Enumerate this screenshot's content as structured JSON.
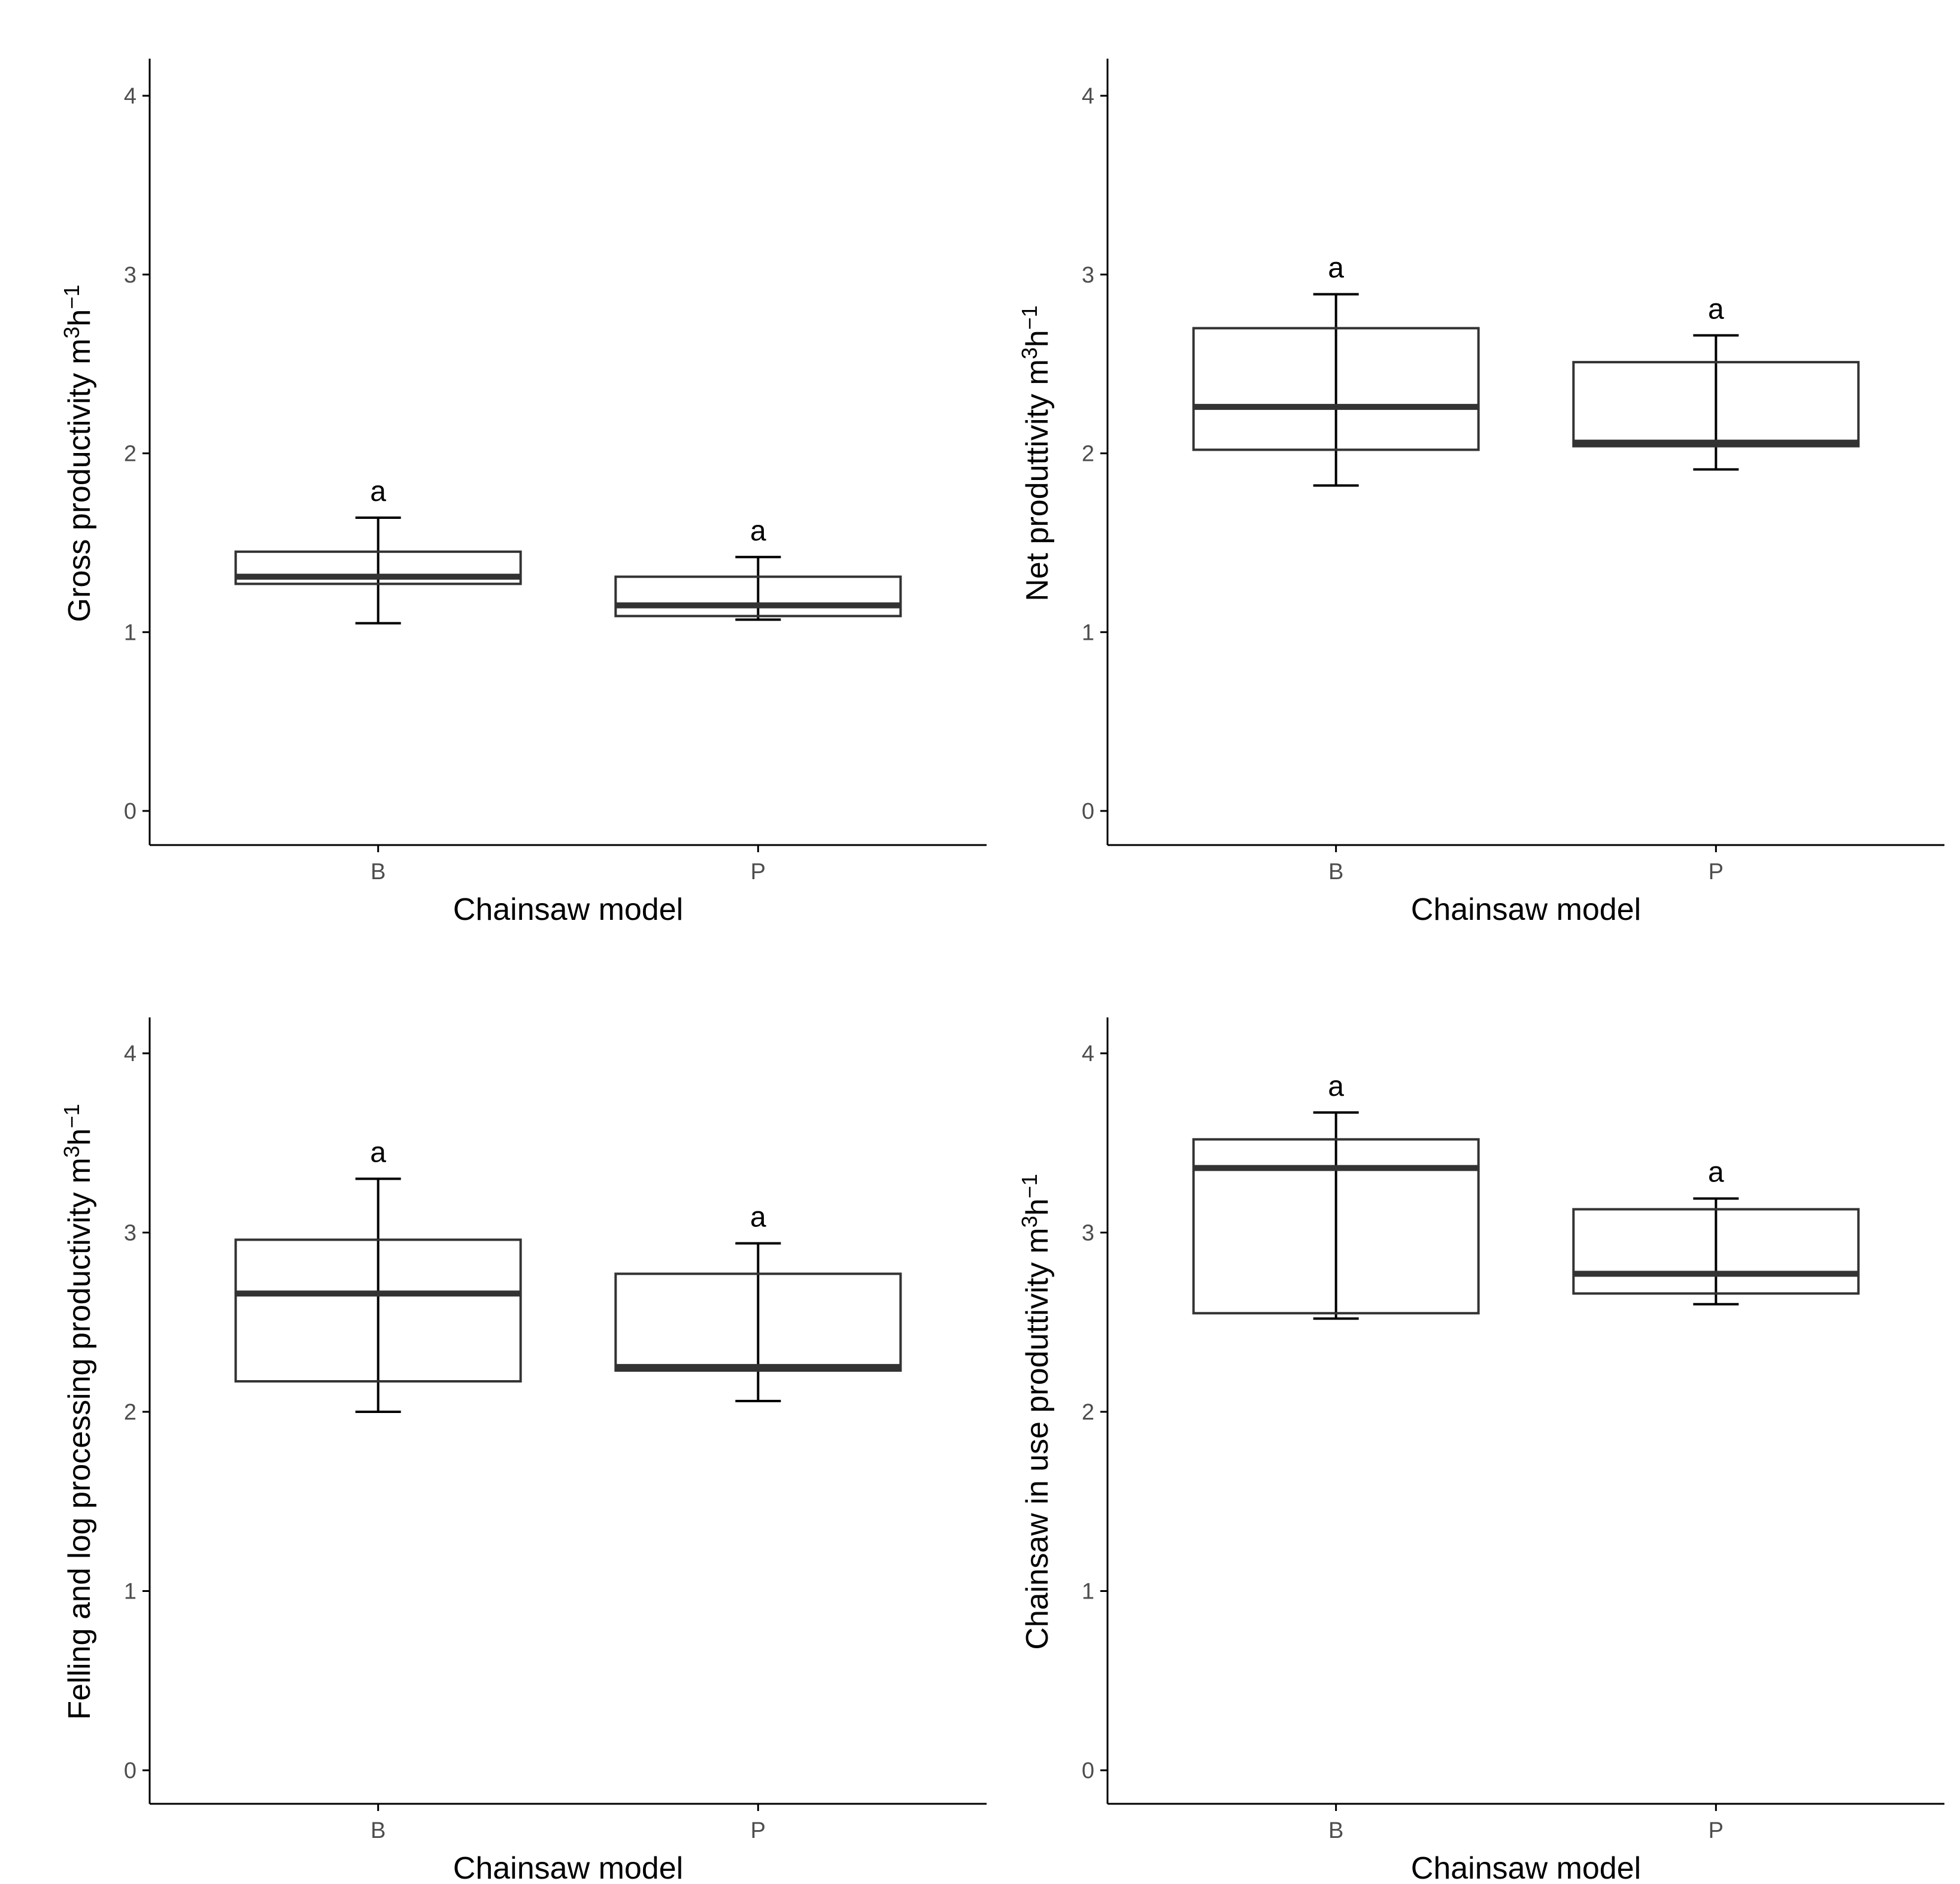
{
  "chart_data": [
    {
      "type": "box",
      "title": "",
      "xlabel": "Chainsaw model",
      "ylabel": "Gross productivity m",
      "ylabel_unit_sup1": "3",
      "ylabel_unit_h": "h",
      "ylabel_unit_sup2": "−1",
      "ylim": [
        -0.2,
        4.2
      ],
      "yticks": [
        "0",
        "1",
        "2",
        "3",
        "4"
      ],
      "categories": [
        "B",
        "P"
      ],
      "boxes": [
        {
          "category": "B",
          "lower_whisker": 1.05,
          "q1": 1.27,
          "median": 1.31,
          "q3": 1.45,
          "upper_whisker": 1.64,
          "letter": "a"
        },
        {
          "category": "P",
          "lower_whisker": 1.07,
          "q1": 1.09,
          "median": 1.15,
          "q3": 1.31,
          "upper_whisker": 1.42,
          "letter": "a"
        }
      ]
    },
    {
      "type": "box",
      "title": "",
      "xlabel": "Chainsaw model",
      "ylabel": "Net produttivity m",
      "ylabel_unit_sup1": "3",
      "ylabel_unit_h": "h",
      "ylabel_unit_sup2": "−1",
      "ylim": [
        -0.2,
        4.2
      ],
      "yticks": [
        "0",
        "1",
        "2",
        "3",
        "4"
      ],
      "categories": [
        "B",
        "P"
      ],
      "boxes": [
        {
          "category": "B",
          "lower_whisker": 1.82,
          "q1": 2.02,
          "median": 2.26,
          "q3": 2.7,
          "upper_whisker": 2.89,
          "letter": "a"
        },
        {
          "category": "P",
          "lower_whisker": 1.91,
          "q1": 2.04,
          "median": 2.06,
          "q3": 2.51,
          "upper_whisker": 2.66,
          "letter": "a"
        }
      ]
    },
    {
      "type": "box",
      "title": "",
      "xlabel": "Chainsaw model",
      "ylabel": "Felling and log processing productivity m",
      "ylabel_unit_sup1": "3",
      "ylabel_unit_h": "h",
      "ylabel_unit_sup2": "−1",
      "ylim": [
        -0.2,
        4.2
      ],
      "yticks": [
        "0",
        "1",
        "2",
        "3",
        "4"
      ],
      "categories": [
        "B",
        "P"
      ],
      "boxes": [
        {
          "category": "B",
          "lower_whisker": 2.0,
          "q1": 2.17,
          "median": 2.66,
          "q3": 2.96,
          "upper_whisker": 3.3,
          "letter": "a"
        },
        {
          "category": "P",
          "lower_whisker": 2.06,
          "q1": 2.23,
          "median": 2.25,
          "q3": 2.77,
          "upper_whisker": 2.94,
          "letter": "a"
        }
      ]
    },
    {
      "type": "box",
      "title": "",
      "xlabel": "Chainsaw model",
      "ylabel": "Chainsaw in use produttivity m",
      "ylabel_unit_sup1": "3",
      "ylabel_unit_h": "h",
      "ylabel_unit_sup2": "−1",
      "ylim": [
        -0.2,
        4.2
      ],
      "yticks": [
        "0",
        "1",
        "2",
        "3",
        "4"
      ],
      "categories": [
        "B",
        "P"
      ],
      "boxes": [
        {
          "category": "B",
          "lower_whisker": 2.52,
          "q1": 2.55,
          "median": 3.36,
          "q3": 3.52,
          "upper_whisker": 3.67,
          "letter": "a"
        },
        {
          "category": "P",
          "lower_whisker": 2.6,
          "q1": 2.66,
          "median": 2.77,
          "q3": 3.13,
          "upper_whisker": 3.19,
          "letter": "a"
        }
      ]
    }
  ],
  "colors": {
    "axis": "#000000",
    "box_stroke": "#333333",
    "median": "#333333",
    "whisker": "#000000",
    "tick_label": "#4d4d4d"
  }
}
